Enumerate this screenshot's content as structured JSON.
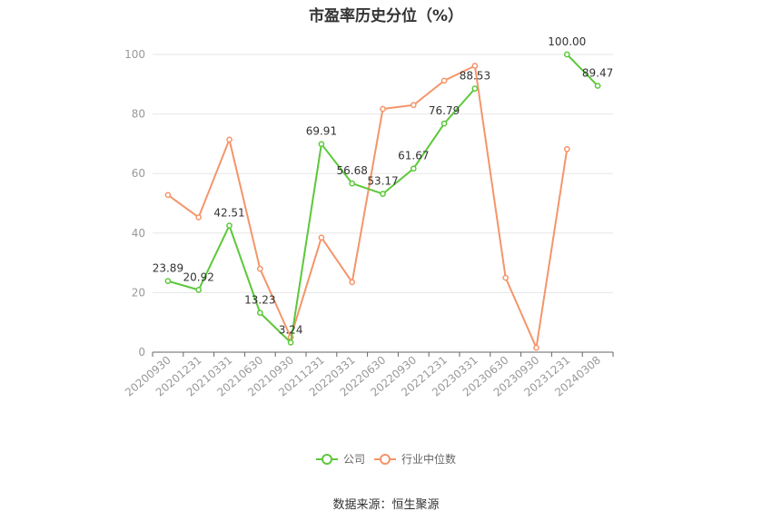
{
  "title": "市盈率历史分位（%）",
  "source": "数据来源：恒生聚源",
  "colors": {
    "company": "#5cc83a",
    "industry": "#f4956a",
    "grid": "#e6e6e6",
    "axis": "#666666"
  },
  "chart_data": {
    "type": "line",
    "title": "市盈率历史分位（%）",
    "x": [
      "20200930",
      "20201231",
      "20210331",
      "20210630",
      "20210930",
      "20211231",
      "20220331",
      "20220630",
      "20220930",
      "20221231",
      "20230331",
      "20230630",
      "20230930",
      "20231231",
      "20240308"
    ],
    "ylim": [
      0,
      100
    ],
    "yticks": [
      0,
      20,
      40,
      60,
      80,
      100
    ],
    "grid": true,
    "legend_position": "bottom",
    "series": [
      {
        "name": "公司",
        "values": [
          23.89,
          20.92,
          42.51,
          13.23,
          3.24,
          69.91,
          56.68,
          53.17,
          61.67,
          76.79,
          88.53,
          null,
          null,
          100.0,
          89.47
        ],
        "labels": [
          "23.89",
          "20.92",
          "42.51",
          "13.23",
          "3.24",
          "69.91",
          "56.68",
          "53.17",
          "61.67",
          "76.79",
          "88.53",
          "",
          "",
          "100.00",
          "89.47"
        ]
      },
      {
        "name": "行业中位数",
        "values": [
          52.8,
          45.3,
          71.4,
          28.0,
          5.0,
          38.5,
          23.5,
          81.7,
          83.0,
          91.2,
          96.2,
          25.0,
          1.5,
          68.2,
          null
        ]
      }
    ]
  }
}
